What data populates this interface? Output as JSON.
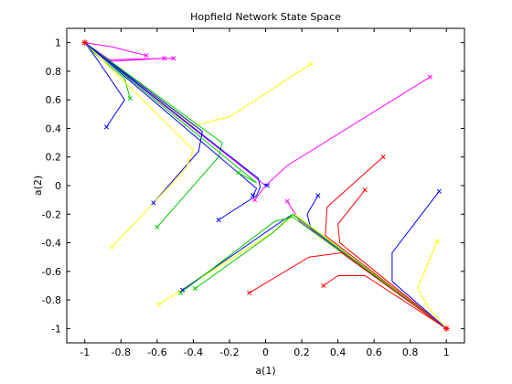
{
  "chart_data": {
    "type": "line",
    "title": "Hopfield Network State Space",
    "xlabel": "a(1)",
    "ylabel": "a(2)",
    "xlim": [
      -1.1,
      1.1
    ],
    "ylim": [
      -1.1,
      1.1
    ],
    "xticks": [
      -1,
      -0.8,
      -0.6,
      -0.4,
      -0.2,
      0,
      0.2,
      0.4,
      0.6,
      0.8,
      1
    ],
    "yticks": [
      -1,
      -0.8,
      -0.6,
      -0.4,
      -0.2,
      0,
      0.2,
      0.4,
      0.6,
      0.8,
      1
    ],
    "xtick_labels": [
      "-1",
      "-0.8",
      "-0.6",
      "-0.4",
      "-0.2",
      "0",
      "0.2",
      "0.4",
      "0.6",
      "0.8",
      "1"
    ],
    "ytick_labels": [
      "-1",
      "-0.8",
      "-0.6",
      "-0.4",
      "-0.2",
      "0",
      "0.2",
      "0.4",
      "0.6",
      "0.8",
      "1"
    ],
    "grid": false,
    "colors": {
      "magenta": "#ff00ff",
      "blue": "#0000ff",
      "green": "#00cc00",
      "yellow": "#ffff00",
      "red": "#ff0000",
      "equilibrium": "#ff0000",
      "axis": "#000000"
    },
    "equilibria": [
      [
        -1,
        1
      ],
      [
        1,
        -1
      ]
    ],
    "series": [
      {
        "color": "magenta",
        "points": [
          [
            -0.66,
            0.91
          ],
          [
            -0.85,
            0.97
          ],
          [
            -1,
            1
          ]
        ]
      },
      {
        "color": "magenta",
        "points": [
          [
            -0.56,
            0.89
          ],
          [
            -0.85,
            0.87
          ],
          [
            -1,
            1
          ]
        ]
      },
      {
        "color": "magenta",
        "points": [
          [
            -0.51,
            0.89
          ],
          [
            -0.88,
            0.88
          ],
          [
            -1,
            1
          ]
        ]
      },
      {
        "color": "blue",
        "points": [
          [
            -0.88,
            0.41
          ],
          [
            -0.78,
            0.6
          ],
          [
            -0.93,
            0.88
          ],
          [
            -1,
            1
          ]
        ]
      },
      {
        "color": "green",
        "points": [
          [
            -0.75,
            0.61
          ],
          [
            -0.78,
            0.75
          ],
          [
            -0.95,
            0.93
          ],
          [
            -1,
            1
          ]
        ]
      },
      {
        "color": "yellow",
        "points": [
          [
            0.25,
            0.85
          ],
          [
            -0.2,
            0.48
          ],
          [
            -0.4,
            0.42
          ],
          [
            -1,
            1
          ]
        ]
      },
      {
        "color": "magenta",
        "points": [
          [
            0.91,
            0.76
          ],
          [
            0.12,
            0.14
          ],
          [
            0,
            0
          ],
          [
            -1,
            1
          ]
        ]
      },
      {
        "color": "blue",
        "points": [
          [
            -0.62,
            -0.12
          ],
          [
            -0.37,
            0.24
          ],
          [
            -0.35,
            0.38
          ],
          [
            -1,
            1
          ]
        ]
      },
      {
        "color": "green",
        "points": [
          [
            -0.6,
            -0.29
          ],
          [
            -0.26,
            0.2
          ],
          [
            -0.24,
            0.3
          ],
          [
            -1,
            1
          ]
        ]
      },
      {
        "color": "yellow",
        "points": [
          [
            -0.85,
            -0.43
          ],
          [
            -0.44,
            0.12
          ],
          [
            -0.4,
            0.25
          ],
          [
            -1,
            1
          ]
        ]
      },
      {
        "color": "green",
        "points": [
          [
            -0.15,
            0.09
          ],
          [
            -0.05,
            0.02
          ],
          [
            -1,
            1
          ]
        ]
      },
      {
        "color": "blue",
        "points": [
          [
            -0.26,
            -0.24
          ],
          [
            -0.05,
            -0.07
          ],
          [
            -0.03,
            -0.01
          ],
          [
            -0.04,
            0.05
          ],
          [
            -1,
            1
          ]
        ]
      },
      {
        "color": "blue",
        "points": [
          [
            -0.07,
            -0.07
          ],
          [
            -0.05,
            -0.02
          ],
          [
            -1,
            1
          ]
        ]
      },
      {
        "color": "magenta",
        "points": [
          [
            -0.06,
            -0.1
          ],
          [
            0,
            0
          ]
        ]
      },
      {
        "color": "blue",
        "points": [
          [
            0.01,
            0.0
          ],
          [
            -0.01,
            0.01
          ]
        ]
      },
      {
        "color": "blue",
        "points": [
          [
            0.29,
            -0.07
          ],
          [
            0.23,
            -0.2
          ],
          [
            0.25,
            -0.3
          ],
          [
            1,
            -1
          ]
        ]
      },
      {
        "color": "magenta",
        "points": [
          [
            0.12,
            -0.11
          ],
          [
            0.19,
            -0.25
          ],
          [
            1,
            -1
          ]
        ]
      },
      {
        "color": "red",
        "points": [
          [
            0.65,
            0.2
          ],
          [
            0.34,
            -0.15
          ],
          [
            0.33,
            -0.35
          ],
          [
            1,
            -1
          ]
        ]
      },
      {
        "color": "red",
        "points": [
          [
            0.55,
            -0.03
          ],
          [
            0.4,
            -0.27
          ],
          [
            0.41,
            -0.4
          ],
          [
            1,
            -1
          ]
        ]
      },
      {
        "color": "yellow",
        "points": [
          [
            -0.59,
            -0.83
          ],
          [
            0.05,
            -0.32
          ],
          [
            0.16,
            -0.2
          ],
          [
            1,
            -1
          ]
        ]
      },
      {
        "color": "blue",
        "points": [
          [
            -0.46,
            -0.73
          ],
          [
            0.1,
            -0.24
          ],
          [
            0.15,
            -0.2
          ],
          [
            1,
            -1
          ]
        ]
      },
      {
        "color": "green",
        "points": [
          [
            -0.39,
            -0.72
          ],
          [
            0.04,
            -0.33
          ],
          [
            0.15,
            -0.2
          ],
          [
            1,
            -1
          ]
        ]
      },
      {
        "color": "green",
        "points": [
          [
            -0.47,
            -0.75
          ],
          [
            0.05,
            -0.25
          ],
          [
            0.15,
            -0.22
          ],
          [
            1,
            -1
          ]
        ]
      },
      {
        "color": "red",
        "points": [
          [
            -0.09,
            -0.75
          ],
          [
            0.24,
            -0.5
          ],
          [
            0.42,
            -0.47
          ],
          [
            1,
            -1
          ]
        ]
      },
      {
        "color": "red",
        "points": [
          [
            0.32,
            -0.7
          ],
          [
            0.4,
            -0.63
          ],
          [
            0.55,
            -0.63
          ],
          [
            1,
            -1
          ]
        ]
      },
      {
        "color": "blue",
        "points": [
          [
            0.96,
            -0.04
          ],
          [
            0.7,
            -0.47
          ],
          [
            0.7,
            -0.67
          ],
          [
            1,
            -1
          ]
        ]
      },
      {
        "color": "yellow",
        "points": [
          [
            0.95,
            -0.39
          ],
          [
            0.84,
            -0.72
          ],
          [
            0.9,
            -0.85
          ],
          [
            1,
            -1
          ]
        ]
      }
    ]
  }
}
